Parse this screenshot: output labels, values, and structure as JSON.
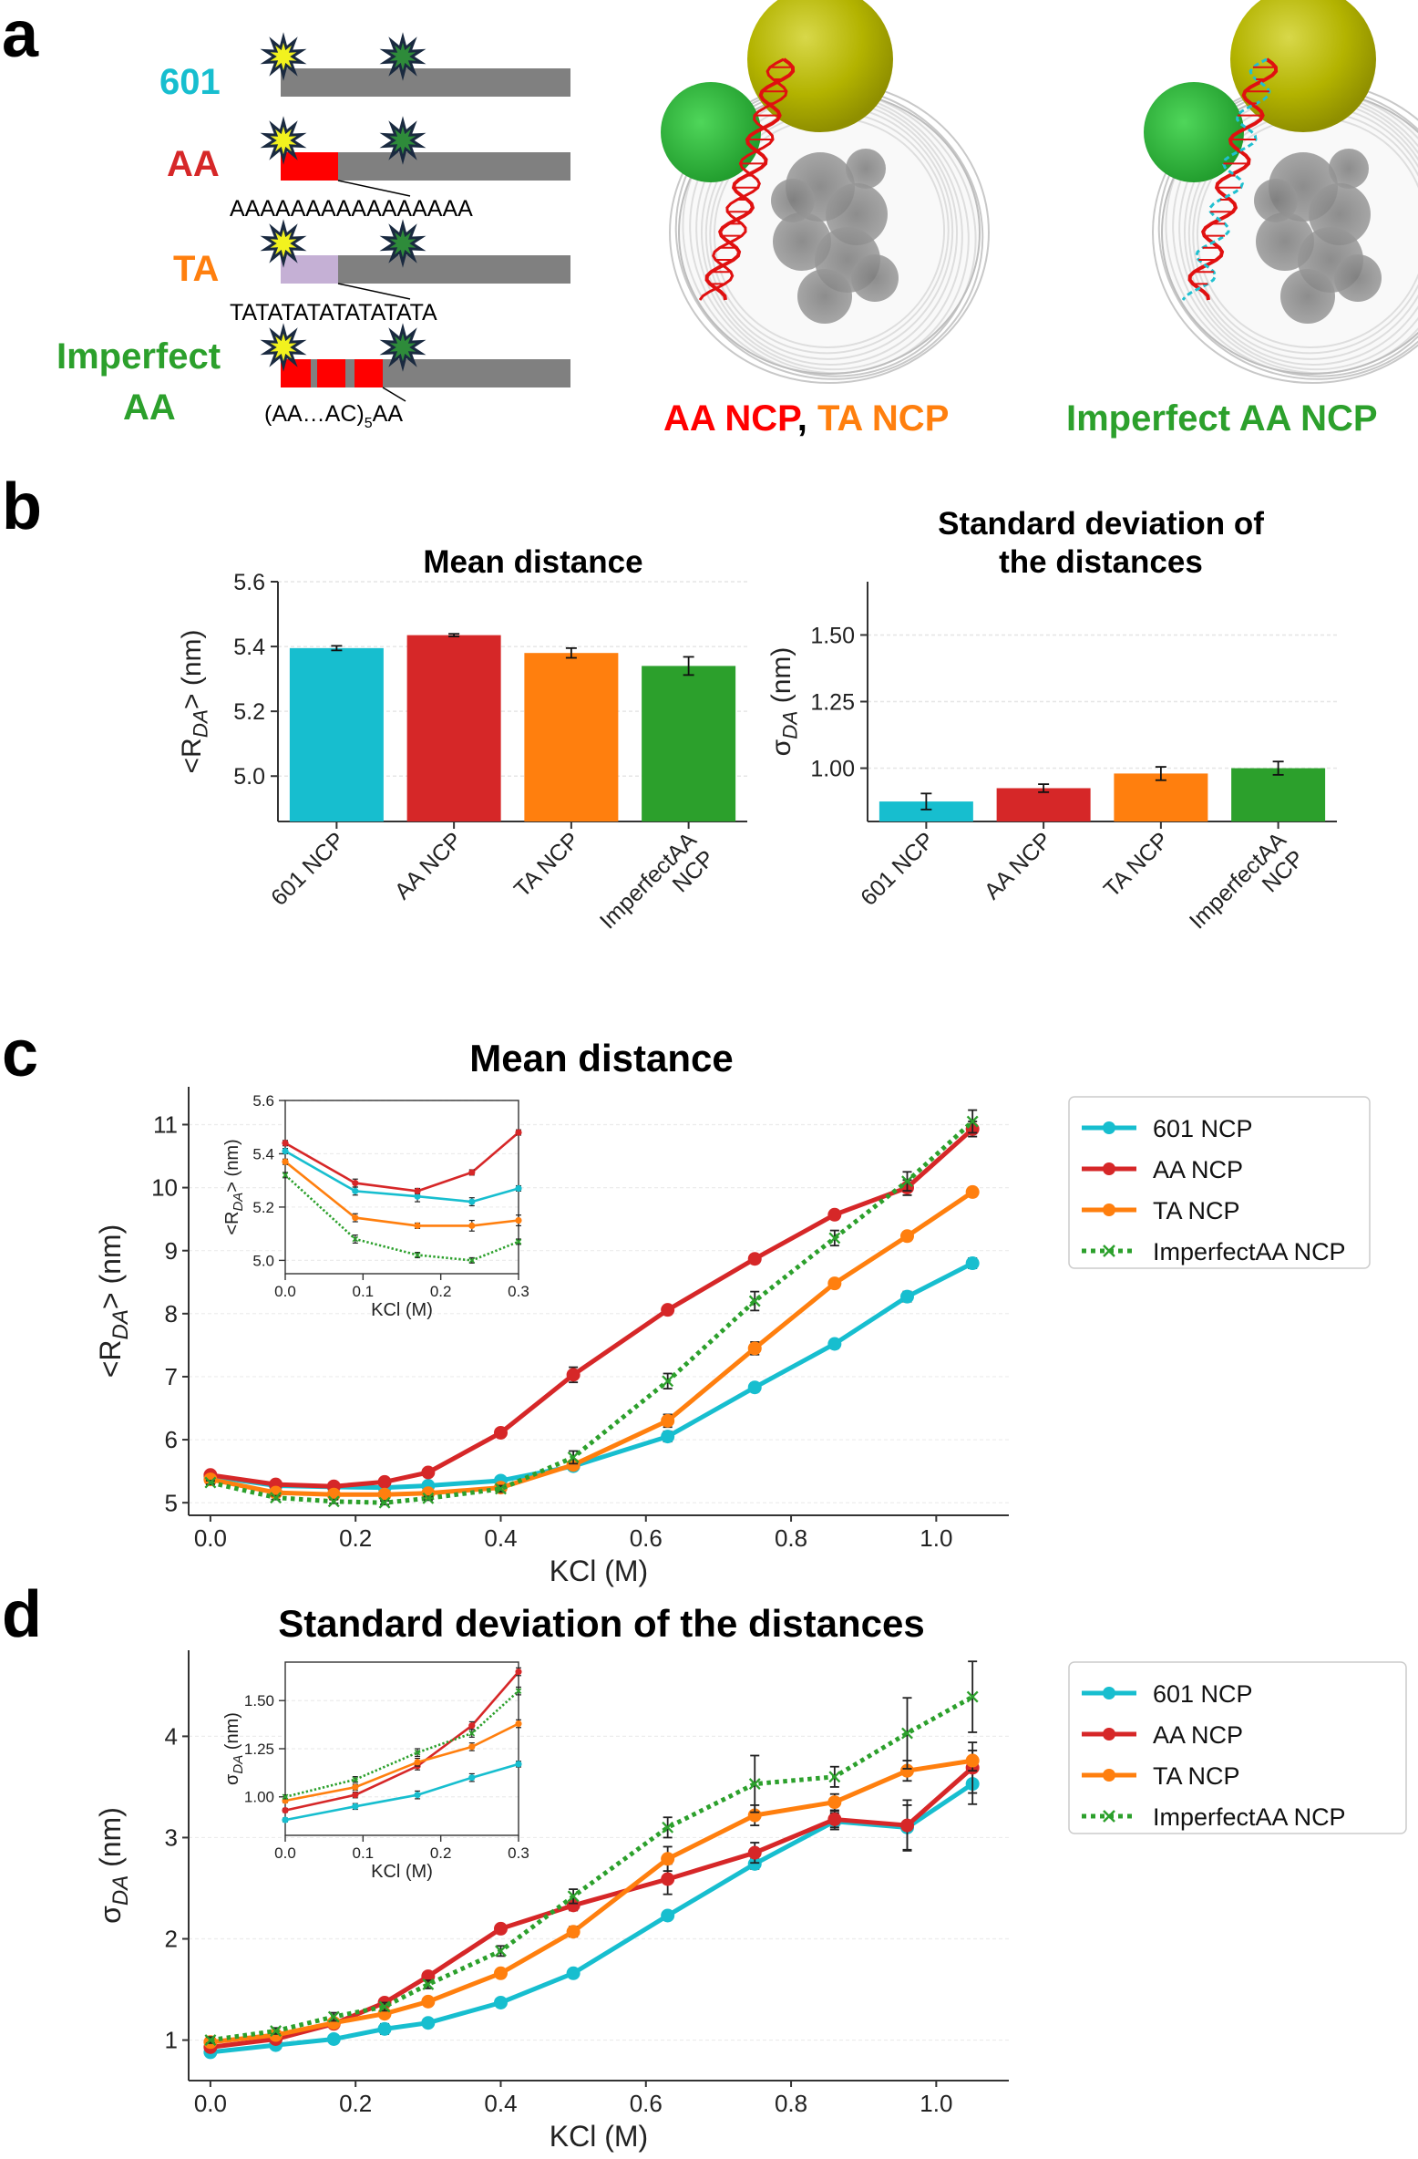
{
  "colors": {
    "601": "#17becf",
    "AA": "#d62728",
    "TA": "#ff7f0e",
    "ImperfectAA": "#2ca02c",
    "dna": "#808080",
    "ta_block": "#c5b0d5",
    "star_yellow": "#f2f21e",
    "star_green": "#2e8b3a",
    "star_outline": "#1a2a40"
  },
  "panel_a": {
    "letter": "a",
    "constructs": [
      {
        "label": "601",
        "color": "#17becf",
        "sequence": ""
      },
      {
        "label": "AA",
        "color": "#d62728",
        "sequence": "AAAAAAAAAAAAAAAA"
      },
      {
        "label": "TA",
        "color": "#ff7f0e",
        "sequence": "TATATATATATATATA"
      },
      {
        "label": "Imperfect",
        "label2": "AA",
        "color": "#2ca02c",
        "sequence": "(AA…AC)",
        "seq_sub": "5",
        "seq_tail": "AA"
      }
    ],
    "structure_labels": {
      "left_part1": "AA NCP",
      "left_sep": ", ",
      "left_part2": "TA NCP",
      "right": "Imperfect AA NCP"
    },
    "icons": [
      "fluorophore-donor-star-icon",
      "fluorophore-acceptor-star-icon",
      "nucleosome-structure-icon"
    ]
  },
  "panel_b": {
    "letter": "b",
    "left": {
      "title": "Mean distance",
      "ylabel_main": "<R",
      "ylabel_sub": "DA",
      "ylabel_end": "> (nm)",
      "yticks": [
        "5.0",
        "5.2",
        "5.4",
        "5.6"
      ]
    },
    "right": {
      "title_line1": "Standard deviation of",
      "title_line2": "the distances",
      "ylabel_main": "σ",
      "ylabel_sub": "DA",
      "ylabel_end": " (nm)",
      "yticks": [
        "1.00",
        "1.25",
        "1.50"
      ]
    }
  },
  "panel_c": {
    "letter": "c",
    "title": "Mean distance",
    "xlabel": "KCl (M)",
    "ylabel_main": "<R",
    "ylabel_sub": "DA",
    "ylabel_end": "> (nm)",
    "xticks": [
      "0.0",
      "0.2",
      "0.4",
      "0.6",
      "0.8",
      "1.0"
    ],
    "yticks": [
      "5",
      "6",
      "7",
      "8",
      "9",
      "10",
      "11"
    ],
    "inset": {
      "xlabel": "KCl (M)",
      "ylabel_main": "<R",
      "ylabel_sub": "DA",
      "ylabel_end": "> (nm)",
      "xticks": [
        "0.0",
        "0.1",
        "0.2",
        "0.3"
      ],
      "yticks": [
        "5.0",
        "5.2",
        "5.4",
        "5.6"
      ]
    },
    "legend": [
      "601 NCP",
      "AA NCP",
      "TA NCP",
      "ImperfectAA NCP"
    ]
  },
  "panel_d": {
    "letter": "d",
    "title": "Standard deviation of the distances",
    "xlabel": "KCl (M)",
    "ylabel_main": "σ",
    "ylabel_sub": "DA",
    "ylabel_end": " (nm)",
    "xticks": [
      "0.0",
      "0.2",
      "0.4",
      "0.6",
      "0.8",
      "1.0"
    ],
    "yticks": [
      "1",
      "2",
      "3",
      "4"
    ],
    "inset": {
      "xlabel": "KCl (M)",
      "ylabel_main": "σ",
      "ylabel_sub": "DA",
      "ylabel_end": " (nm)",
      "xticks": [
        "0.0",
        "0.1",
        "0.2",
        "0.3"
      ],
      "yticks": [
        "1.00",
        "1.25",
        "1.50"
      ]
    },
    "legend": [
      "601 NCP",
      "AA NCP",
      "TA NCP",
      "ImperfectAA NCP"
    ]
  },
  "chart_data": [
    {
      "id": "b-left",
      "type": "bar",
      "title": "Mean distance",
      "categories": [
        "601 NCP",
        "AA NCP",
        "TA NCP",
        "ImperfectAA NCP"
      ],
      "values": [
        5.395,
        5.435,
        5.38,
        5.34
      ],
      "errors": [
        0.007,
        0.004,
        0.015,
        0.028
      ],
      "colors": [
        "#17becf",
        "#d62728",
        "#ff7f0e",
        "#2ca02c"
      ],
      "ylim": [
        4.86,
        5.6
      ]
    },
    {
      "id": "b-right",
      "type": "bar",
      "title": "Standard deviation of the distances",
      "categories": [
        "601 NCP",
        "AA NCP",
        "TA NCP",
        "ImperfectAA NCP"
      ],
      "values": [
        0.875,
        0.925,
        0.98,
        1.0
      ],
      "errors": [
        0.03,
        0.015,
        0.025,
        0.025
      ],
      "colors": [
        "#17becf",
        "#d62728",
        "#ff7f0e",
        "#2ca02c"
      ],
      "ylim": [
        0.8,
        1.7
      ]
    },
    {
      "id": "c-main",
      "type": "line",
      "title": "Mean distance",
      "xlabel": "KCl (M)",
      "xlim": [
        -0.03,
        1.1
      ],
      "ylim": [
        4.8,
        11.6
      ],
      "x": [
        0,
        0.09,
        0.17,
        0.24,
        0.3,
        0.4,
        0.5,
        0.63,
        0.75,
        0.86,
        0.96,
        1.05
      ],
      "legend_position": "right",
      "series": [
        {
          "name": "601 NCP",
          "key": "601",
          "style": "solid-dot",
          "values": [
            5.42,
            5.27,
            5.25,
            5.24,
            5.27,
            5.35,
            5.58,
            6.05,
            6.83,
            7.52,
            8.27,
            8.8
          ],
          "errors": [
            0.03,
            0.03,
            0.03,
            0.03,
            0.03,
            0.05,
            0.05,
            0.08,
            0.07,
            0.07,
            0.08,
            0.08
          ]
        },
        {
          "name": "AA NCP",
          "key": "AA",
          "style": "solid-dot",
          "values": [
            5.44,
            5.29,
            5.26,
            5.33,
            5.48,
            6.11,
            7.03,
            8.06,
            8.87,
            9.57,
            10.0,
            10.93
          ],
          "errors": [
            0.03,
            0.03,
            0.03,
            0.03,
            0.03,
            0.05,
            0.12,
            0.07,
            0.07,
            0.07,
            0.12,
            0.12
          ]
        },
        {
          "name": "TA NCP",
          "key": "TA",
          "style": "solid-dot",
          "values": [
            5.37,
            5.16,
            5.13,
            5.13,
            5.15,
            5.24,
            5.6,
            6.3,
            7.45,
            8.48,
            9.23,
            9.93
          ],
          "errors": [
            0.03,
            0.03,
            0.03,
            0.03,
            0.03,
            0.05,
            0.05,
            0.1,
            0.1,
            0.07,
            0.07,
            0.07
          ]
        },
        {
          "name": "ImperfectAA NCP",
          "key": "ImperfectAA",
          "style": "dotted-x",
          "values": [
            5.32,
            5.08,
            5.02,
            5.0,
            5.07,
            5.22,
            5.72,
            6.93,
            8.2,
            9.2,
            10.1,
            11.05
          ],
          "errors": [
            0.03,
            0.03,
            0.03,
            0.03,
            0.03,
            0.05,
            0.1,
            0.12,
            0.15,
            0.12,
            0.15,
            0.18
          ]
        }
      ]
    },
    {
      "id": "c-inset",
      "type": "line",
      "xlabel": "KCl (M)",
      "xlim": [
        0,
        0.3
      ],
      "ylim": [
        4.95,
        5.6
      ],
      "x": [
        0,
        0.09,
        0.17,
        0.24,
        0.3
      ],
      "series": [
        {
          "key": "601",
          "values": [
            5.41,
            5.26,
            5.24,
            5.22,
            5.27
          ],
          "errors": [
            0.01,
            0.015,
            0.02,
            0.015,
            0.01
          ]
        },
        {
          "key": "AA",
          "values": [
            5.44,
            5.29,
            5.26,
            5.33,
            5.48
          ],
          "errors": [
            0.01,
            0.015,
            0.01,
            0.01,
            0.01
          ]
        },
        {
          "key": "TA",
          "values": [
            5.37,
            5.16,
            5.13,
            5.13,
            5.15
          ],
          "errors": [
            0.01,
            0.015,
            0.01,
            0.02,
            0.02
          ]
        },
        {
          "key": "ImperfectAA",
          "style": "dotted-x",
          "values": [
            5.32,
            5.08,
            5.02,
            5.0,
            5.07
          ],
          "errors": [
            0.01,
            0.015,
            0.01,
            0.01,
            0.01
          ]
        }
      ]
    },
    {
      "id": "d-main",
      "type": "line",
      "title": "Standard deviation of the distances",
      "xlabel": "KCl (M)",
      "xlim": [
        -0.03,
        1.1
      ],
      "ylim": [
        0.6,
        4.85
      ],
      "x": [
        0,
        0.09,
        0.17,
        0.24,
        0.3,
        0.4,
        0.5,
        0.63,
        0.75,
        0.86,
        0.96,
        1.05
      ],
      "legend_position": "right",
      "series": [
        {
          "name": "601 NCP",
          "key": "601",
          "style": "solid-dot",
          "values": [
            0.88,
            0.95,
            1.01,
            1.11,
            1.17,
            1.37,
            1.66,
            2.23,
            2.74,
            3.16,
            3.1,
            3.53
          ],
          "errors": [
            0.03,
            0.03,
            0.04,
            0.05,
            0.04,
            0.04,
            0.04,
            0.04,
            0.05,
            0.08,
            0.22,
            0.2
          ]
        },
        {
          "name": "AA NCP",
          "key": "AA",
          "style": "solid-dot",
          "values": [
            0.93,
            1.01,
            1.16,
            1.37,
            1.63,
            2.1,
            2.33,
            2.59,
            2.85,
            3.18,
            3.12,
            3.69
          ],
          "errors": [
            0.03,
            0.03,
            0.04,
            0.04,
            0.04,
            0.04,
            0.05,
            0.15,
            0.1,
            0.08,
            0.25,
            0.25
          ]
        },
        {
          "name": "TA NCP",
          "key": "TA",
          "style": "solid-dot",
          "values": [
            0.98,
            1.05,
            1.17,
            1.26,
            1.38,
            1.66,
            2.07,
            2.79,
            3.22,
            3.35,
            3.66,
            3.76
          ],
          "errors": [
            0.03,
            0.03,
            0.04,
            0.04,
            0.04,
            0.04,
            0.05,
            0.12,
            0.1,
            0.08,
            0.1,
            0.1
          ]
        },
        {
          "name": "ImperfectAA NCP",
          "key": "ImperfectAA",
          "style": "dotted-x",
          "values": [
            1.0,
            1.09,
            1.23,
            1.33,
            1.55,
            1.88,
            2.42,
            3.1,
            3.53,
            3.6,
            4.03,
            4.39
          ],
          "errors": [
            0.03,
            0.03,
            0.04,
            0.04,
            0.04,
            0.05,
            0.07,
            0.1,
            0.28,
            0.1,
            0.35,
            0.35
          ]
        }
      ]
    },
    {
      "id": "d-inset",
      "type": "line",
      "xlabel": "KCl (M)",
      "xlim": [
        0,
        0.3
      ],
      "ylim": [
        0.8,
        1.7
      ],
      "x": [
        0,
        0.09,
        0.17,
        0.24,
        0.3
      ],
      "series": [
        {
          "key": "601",
          "values": [
            0.88,
            0.95,
            1.01,
            1.1,
            1.17
          ],
          "errors": [
            0.01,
            0.015,
            0.02,
            0.02,
            0.015
          ]
        },
        {
          "key": "AA",
          "values": [
            0.93,
            1.01,
            1.16,
            1.37,
            1.65
          ],
          "errors": [
            0.01,
            0.015,
            0.02,
            0.02,
            0.02
          ]
        },
        {
          "key": "TA",
          "values": [
            0.98,
            1.05,
            1.18,
            1.26,
            1.38
          ],
          "errors": [
            0.01,
            0.015,
            0.02,
            0.02,
            0.02
          ]
        },
        {
          "key": "ImperfectAA",
          "style": "dotted-x",
          "values": [
            1.0,
            1.09,
            1.23,
            1.33,
            1.55
          ],
          "errors": [
            0.01,
            0.015,
            0.02,
            0.02,
            0.02
          ]
        }
      ]
    }
  ]
}
